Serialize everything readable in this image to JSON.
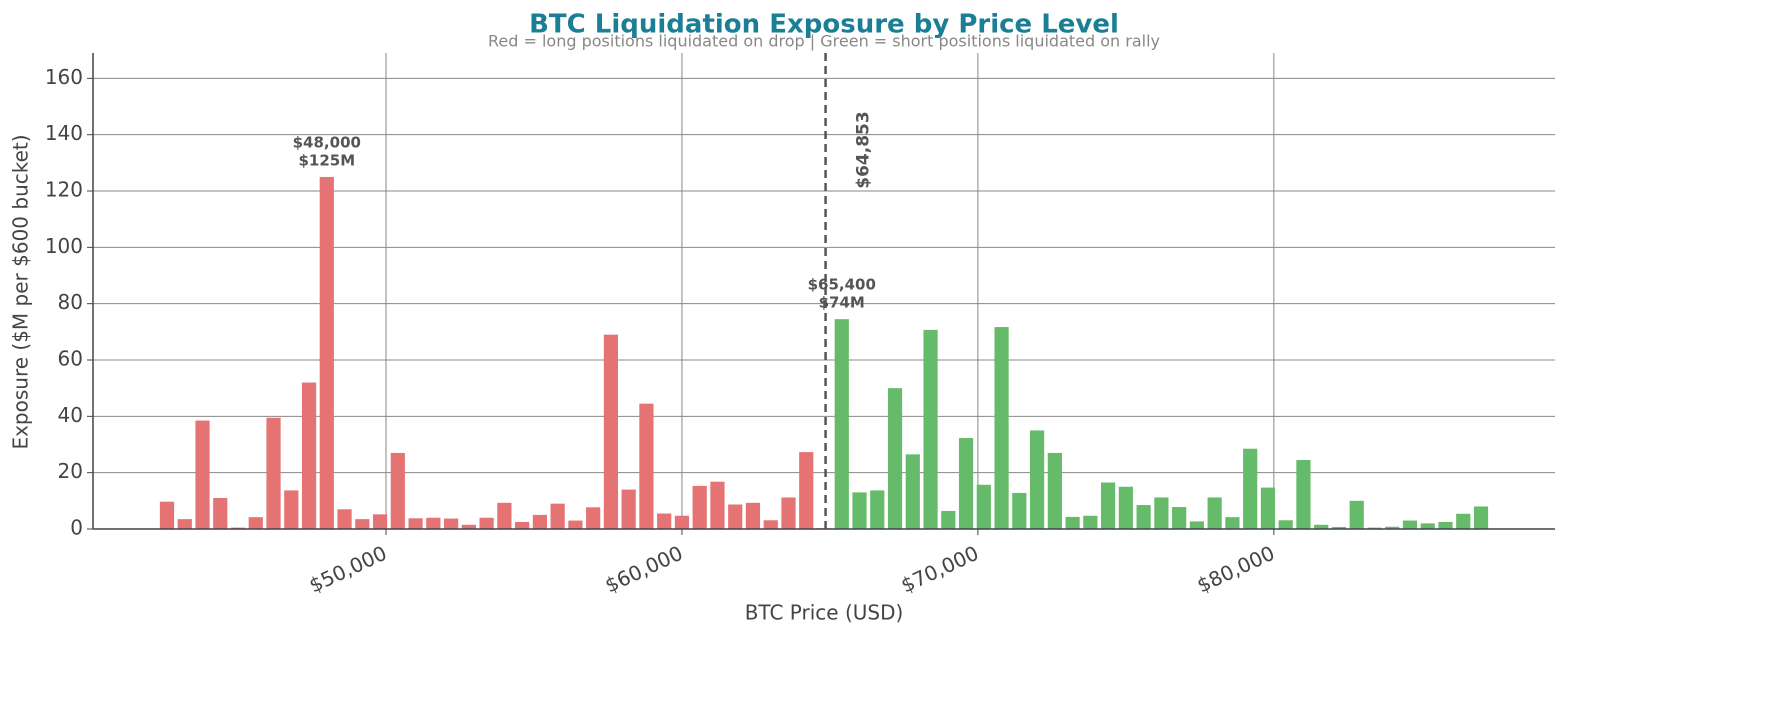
{
  "chart_data": {
    "type": "bar",
    "title": "BTC Liquidation Exposure by Price Level",
    "subtitle": "Red = long positions liquidated on drop  |  Green = short positions liquidated on rally",
    "x_label": "BTC Price (USD)",
    "y_label": "Exposure ($M per $600 bucket)",
    "xlim": [
      40100,
      89500
    ],
    "ylim": [
      0,
      169
    ],
    "xticks": [
      {
        "value": 50000,
        "label": "$50,000"
      },
      {
        "value": 60000,
        "label": "$60,000"
      },
      {
        "value": 70000,
        "label": "$70,000"
      },
      {
        "value": 80000,
        "label": "$80,000"
      }
    ],
    "yticks": [
      0,
      20,
      40,
      60,
      80,
      100,
      120,
      140,
      160
    ],
    "grid": true,
    "series": [
      {
        "color": "#e57373",
        "x": [
          42600,
          43200,
          43800,
          44400,
          45000,
          45600,
          46200,
          46800,
          47400,
          48000,
          48600,
          49200,
          49800,
          50400,
          51000,
          51600,
          52200,
          52800,
          53400,
          54000,
          54600,
          55200,
          55800,
          56400,
          57000,
          57600,
          58200,
          58800,
          59400,
          60000,
          60600,
          61200,
          61800,
          62400,
          63000,
          63600,
          64200,
          64800
        ],
        "values": [
          9.7,
          3.5,
          38.5,
          11,
          0.5,
          4.2,
          39.5,
          13.7,
          52,
          125,
          7,
          3.5,
          5.2,
          27,
          3.8,
          4,
          3.7,
          1.5,
          4,
          9.3,
          2.5,
          5,
          9,
          3,
          7.7,
          69,
          14,
          44.5,
          5.5,
          4.7,
          15.3,
          16.8,
          8.7,
          9.3,
          3.1,
          11.2,
          27.3,
          0.3
        ]
      },
      {
        "color": "#66bb6a",
        "x": [
          65400,
          66000,
          66600,
          67200,
          67800,
          68400,
          69000,
          69600,
          70200,
          70800,
          71400,
          72000,
          72600,
          73200,
          73800,
          74400,
          75000,
          75600,
          76200,
          76800,
          77400,
          78000,
          78600,
          79200,
          79800,
          80400,
          81000,
          81600,
          82200,
          82800,
          83400,
          84000,
          84600,
          85200,
          85800,
          86400,
          87000
        ],
        "values": [
          74.5,
          13,
          13.7,
          50,
          26.5,
          70.7,
          6.4,
          32.3,
          15.7,
          71.7,
          12.8,
          35,
          27,
          4.3,
          4.7,
          16.5,
          15,
          8.5,
          11.2,
          7.8,
          2.7,
          11.2,
          4.2,
          28.5,
          14.7,
          3.1,
          24.5,
          1.5,
          0.7,
          10,
          0.5,
          0.8,
          3,
          2,
          2.5,
          5.4,
          8
        ]
      }
    ],
    "vline": {
      "x": 64853,
      "label": "$64,853"
    },
    "annotations": [
      {
        "x": 48000,
        "y": 125,
        "lines": [
          "$48,000",
          "$125M"
        ]
      },
      {
        "x": 65400,
        "y": 74.5,
        "lines": [
          "$65,400",
          "$74M"
        ]
      }
    ]
  }
}
